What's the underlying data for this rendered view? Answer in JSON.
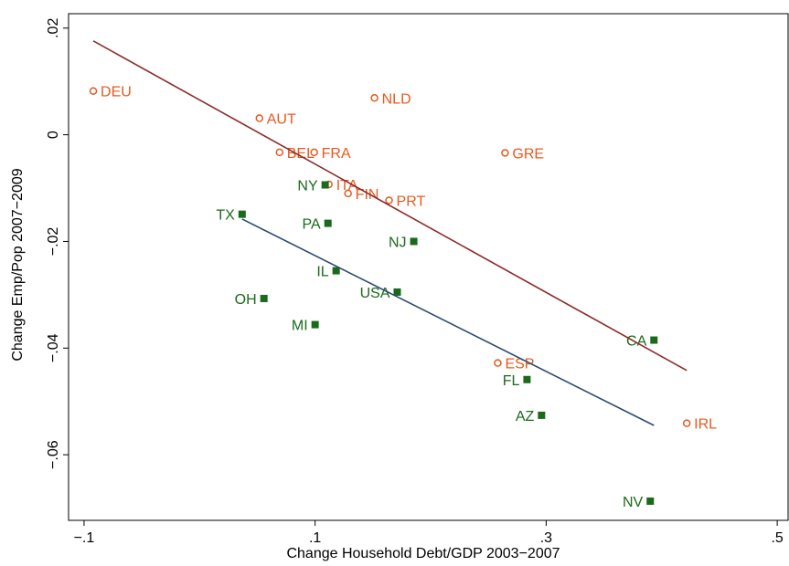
{
  "chart_data": {
    "type": "scatter",
    "x_label": "Change Household Debt/GDP 2003−2007",
    "y_label": "Change Emp/Pop 2007−2009",
    "xlim": [
      -0.1134,
      0.5094
    ],
    "ylim": [
      -0.0723,
      0.0227
    ],
    "xticks": [
      {
        "value": -0.1,
        "label": "−.1"
      },
      {
        "value": 0.1,
        "label": ".1"
      },
      {
        "value": 0.3,
        "label": ".3"
      },
      {
        "value": 0.5,
        "label": ".5"
      }
    ],
    "yticks": [
      {
        "value": 0.02,
        "label": ".02"
      },
      0,
      {
        "value": -0.02,
        "label": "−.02"
      },
      {
        "value": -0.04,
        "label": "−.04"
      },
      {
        "value": -0.06,
        "label": "−.06"
      }
    ],
    "series": [
      {
        "marker": "circle",
        "color": "#e8581e",
        "label_position": "right",
        "labels": [
          "DEU",
          "AUT",
          "NLD",
          "BEL",
          "FRA",
          "GRE",
          "ITA",
          "FIN",
          "PRT",
          "ESP",
          "IRL"
        ],
        "x": [
          -0.092,
          0.0518,
          0.1514,
          0.0692,
          0.0992,
          0.2644,
          0.1119,
          0.1285,
          0.164,
          0.2581,
          0.4217
        ],
        "values": [
          0.0082,
          0.0031,
          0.0069,
          -0.0033,
          -0.0033,
          -0.0034,
          -0.0093,
          -0.011,
          -0.0123,
          -0.0428,
          -0.0541
        ]
      },
      {
        "marker": "square",
        "color": "#1b6a1b",
        "label_position": "left",
        "labels": [
          "TX",
          "NY",
          "PA",
          "NJ",
          "IL",
          "USA",
          "OH",
          "MI",
          "CA",
          "FL",
          "AZ",
          "NV"
        ],
        "x": [
          0.0368,
          0.1087,
          0.1111,
          0.1854,
          0.1182,
          0.1711,
          0.0557,
          0.1,
          0.3933,
          0.2834,
          0.296,
          0.3901
        ],
        "values": [
          -0.0149,
          -0.0094,
          -0.0166,
          -0.02,
          -0.0255,
          -0.0295,
          -0.0307,
          -0.0356,
          -0.0385,
          -0.0459,
          -0.0526,
          -0.0687
        ]
      },
      {
        "marker": "line",
        "color": "#8b2c2c",
        "x": [
          -0.092,
          0.4217
        ],
        "values": [
          0.0176,
          -0.0442
        ]
      },
      {
        "marker": "line",
        "color": "#2b4a70",
        "x": [
          0.0368,
          0.3933
        ],
        "values": [
          -0.0158,
          -0.0545
        ]
      }
    ]
  }
}
